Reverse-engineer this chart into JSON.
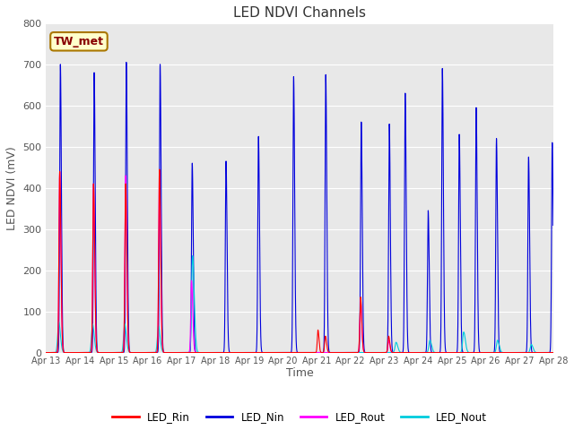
{
  "title": "LED NDVI Channels",
  "ylabel": "LED NDVI (mV)",
  "xlabel": "Time",
  "ylim": [
    0,
    800
  ],
  "background_color": "#e8e8e8",
  "annotation_text": "TW_met",
  "annotation_bg": "#ffffcc",
  "annotation_border": "#aa7700",
  "colors": {
    "LED_Rin": "#ff0000",
    "LED_Nin": "#0000dd",
    "LED_Rout": "#ff00ff",
    "LED_Nout": "#00ccdd"
  },
  "legend_labels": [
    "LED_Rin",
    "LED_Nin",
    "LED_Rout",
    "LED_Nout"
  ],
  "x_tick_labels": [
    "Apr 13",
    "Apr 14",
    "Apr 15",
    "Apr 16",
    "Apr 17",
    "Apr 18",
    "Apr 19",
    "Apr 20",
    "Apr 21",
    "Apr 22",
    "Apr 23",
    "Apr 24",
    "Apr 25",
    "Apr 26",
    "Apr 27",
    "Apr 28"
  ],
  "num_days": 16,
  "yticks": [
    0,
    100,
    200,
    300,
    400,
    500,
    600,
    700,
    800
  ]
}
